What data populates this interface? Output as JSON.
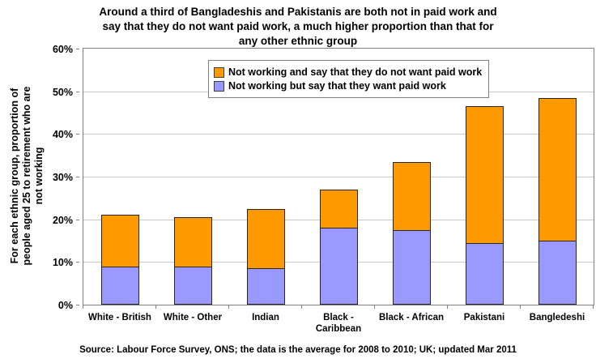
{
  "title": "Around a third of Bangladeshis and Pakistanis are both not in paid work and\nsay that they do not want paid work, a much higher proportion than that for\nany other ethnic group",
  "source": "Source: Labour Force Survey, ONS; the data is the average for 2008 to 2010; UK; updated Mar 2011",
  "y_axis": {
    "label": "For each ethnic group, proportion of\npeople aged 25 to retirement who are\nnot working",
    "ticks": [
      "0%",
      "10%",
      "20%",
      "30%",
      "40%",
      "50%",
      "60%"
    ]
  },
  "legend": [
    {
      "label": "Not working and say that they do not want paid work",
      "color": "#FF9900"
    },
    {
      "label": "Not working but say that they want paid work",
      "color": "#9999FF"
    }
  ],
  "colors": {
    "orange": "#FF9900",
    "periwinkle": "#9999FF",
    "bar_border": "#262626",
    "gridline": "#C9C9C9",
    "plot_border": "#808080"
  },
  "chart_data": {
    "type": "bar",
    "stacked": true,
    "title": "Around a third of Bangladeshis and Pakistanis are both not in paid work and say that they do not want paid work, a much higher proportion than that for any other ethnic group",
    "xlabel": "",
    "ylabel": "For each ethnic group, proportion of people aged 25 to retirement who are not working",
    "ylim": [
      0,
      60
    ],
    "ytick_step": 10,
    "grid": true,
    "legend_position": "top-center-inside",
    "categories": [
      "White - British",
      "White - Other",
      "Indian",
      "Black - Caribbean",
      "Black - African",
      "Pakistani",
      "Bangledeshi"
    ],
    "series": [
      {
        "name": "Not working but say that they want paid work",
        "color": "#9999FF",
        "values": [
          9,
          9,
          8.5,
          18,
          17.5,
          14.5,
          15
        ]
      },
      {
        "name": "Not working and say that they do not want paid work",
        "color": "#FF9900",
        "values": [
          12,
          11.5,
          14,
          9,
          16,
          32,
          33.5
        ]
      }
    ],
    "totals": [
      21,
      20.5,
      22.5,
      27,
      33.5,
      46.5,
      48.5
    ]
  }
}
